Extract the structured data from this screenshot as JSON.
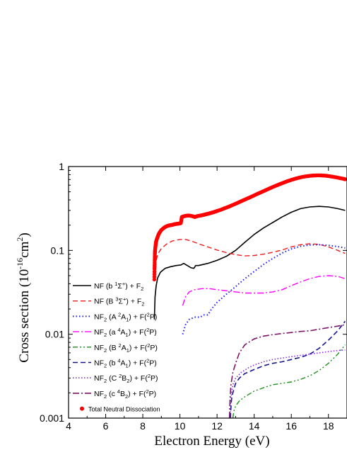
{
  "chart_data": {
    "type": "line",
    "xlabel": "Electron Energy (eV)",
    "ylabel": "Cross section (10^-16 cm^2)",
    "ylabel_parts": {
      "main": "Cross section  (10",
      "exp1": "-16",
      "mid": "cm",
      "exp2": "2",
      "end": ")"
    },
    "xlim": [
      4,
      19
    ],
    "ylim": [
      0.001,
      1
    ],
    "yscale": "log",
    "x_ticks": [
      4,
      6,
      8,
      10,
      12,
      14,
      16,
      18
    ],
    "x_tick_labels": [
      "4",
      "6",
      "8",
      "10",
      "12",
      "14",
      "16",
      "18"
    ],
    "y_ticks": [
      0.001,
      0.01,
      0.1,
      1
    ],
    "y_tick_labels": [
      "0.001",
      "0.01",
      "0.1",
      "1"
    ],
    "grid": false,
    "legend_position": "left",
    "series": [
      {
        "name": "NF (b 1Σ+) + F2",
        "legend_parts": [
          {
            "t": "NF (b "
          },
          {
            "t": "1",
            "sup": 1
          },
          {
            "t": "Σ"
          },
          {
            "t": "+",
            "sup": 1
          },
          {
            "t": ") + F"
          },
          {
            "t": "2",
            "sub": 1
          }
        ],
        "color": "#000000",
        "dash": "",
        "width": 1.6,
        "x": [
          8.62,
          8.66,
          8.72,
          8.8,
          8.95,
          9.2,
          9.5,
          9.8,
          10.05,
          10.2,
          10.4,
          10.6,
          10.75,
          10.85,
          11.0,
          11.5,
          12.0,
          12.5,
          13.0,
          13.5,
          14.0,
          14.5,
          15.0,
          15.5,
          16.0,
          16.5,
          17.0,
          17.5,
          18.0,
          18.5,
          18.9
        ],
        "y": [
          0.015,
          0.028,
          0.038,
          0.047,
          0.055,
          0.061,
          0.064,
          0.066,
          0.067,
          0.07,
          0.066,
          0.062,
          0.061,
          0.066,
          0.066,
          0.07,
          0.076,
          0.085,
          0.1,
          0.125,
          0.155,
          0.185,
          0.215,
          0.25,
          0.285,
          0.315,
          0.33,
          0.335,
          0.33,
          0.315,
          0.3
        ]
      },
      {
        "name": "NF (B 3Σ+) + F2",
        "legend_parts": [
          {
            "t": "NF (B "
          },
          {
            "t": "3",
            "sup": 1
          },
          {
            "t": "Σ"
          },
          {
            "t": "+",
            "sup": 1
          },
          {
            "t": ") + F"
          },
          {
            "t": "2",
            "sub": 1
          }
        ],
        "color": "#ee1c1c",
        "dash": "7,4",
        "width": 1.4,
        "x": [
          8.68,
          8.72,
          8.8,
          9.0,
          9.3,
          9.6,
          10.0,
          10.3,
          10.6,
          11.0,
          11.5,
          12.0,
          12.5,
          13.0,
          13.5,
          14.0,
          14.5,
          15.0,
          15.5,
          16.0,
          16.5,
          17.0,
          17.5,
          18.0,
          18.5,
          18.9
        ],
        "y": [
          0.05,
          0.075,
          0.09,
          0.105,
          0.12,
          0.13,
          0.135,
          0.135,
          0.13,
          0.12,
          0.11,
          0.101,
          0.094,
          0.089,
          0.086,
          0.087,
          0.09,
          0.095,
          0.101,
          0.11,
          0.117,
          0.12,
          0.118,
          0.11,
          0.1,
          0.092
        ]
      },
      {
        "name": "NF2 (A 2A1) + F(2P)",
        "legend_parts": [
          {
            "t": "NF"
          },
          {
            "t": "2",
            "sub": 1
          },
          {
            "t": " (A "
          },
          {
            "t": "2",
            "sup": 1
          },
          {
            "t": "A"
          },
          {
            "t": "1",
            "sub": 1
          },
          {
            "t": ") + F("
          },
          {
            "t": "2",
            "sup": 1
          },
          {
            "t": "P)"
          }
        ],
        "color": "#1c1cf0",
        "dash": "1.5,3",
        "width": 2,
        "x": [
          10.15,
          10.3,
          10.5,
          10.8,
          11.1,
          11.3,
          11.5,
          11.7,
          12.0,
          12.5,
          13.0,
          13.5,
          14.0,
          14.5,
          15.0,
          15.5,
          16.0,
          16.5,
          17.0,
          17.5,
          18.0,
          18.5,
          18.9
        ],
        "y": [
          0.01,
          0.013,
          0.015,
          0.016,
          0.016,
          0.017,
          0.017,
          0.02,
          0.024,
          0.03,
          0.037,
          0.046,
          0.056,
          0.068,
          0.08,
          0.093,
          0.104,
          0.112,
          0.116,
          0.117,
          0.115,
          0.111,
          0.107
        ]
      },
      {
        "name": "NF2 (a 4A1) + F(2P)",
        "legend_parts": [
          {
            "t": "NF"
          },
          {
            "t": "2",
            "sub": 1
          },
          {
            "t": " (a "
          },
          {
            "t": "4",
            "sup": 1
          },
          {
            "t": "A"
          },
          {
            "t": "1",
            "sub": 1
          },
          {
            "t": ") + F("
          },
          {
            "t": "2",
            "sup": 1
          },
          {
            "t": "P)"
          }
        ],
        "color": "#ff00ff",
        "dash": "9,3,2,3",
        "width": 1.4,
        "x": [
          10.15,
          10.3,
          10.5,
          10.8,
          11.2,
          11.6,
          12.0,
          12.5,
          13.0,
          13.5,
          14.0,
          14.5,
          15.0,
          15.5,
          16.0,
          16.5,
          17.0,
          17.5,
          18.0,
          18.5,
          18.9
        ],
        "y": [
          0.022,
          0.028,
          0.032,
          0.034,
          0.035,
          0.035,
          0.034,
          0.033,
          0.032,
          0.031,
          0.031,
          0.031,
          0.032,
          0.034,
          0.038,
          0.042,
          0.046,
          0.049,
          0.05,
          0.049,
          0.046
        ]
      },
      {
        "name": "NF2 (B 2A1) + F(2P)",
        "legend_parts": [
          {
            "t": "NF"
          },
          {
            "t": "2",
            "sub": 1
          },
          {
            "t": " (B "
          },
          {
            "t": "2",
            "sup": 1
          },
          {
            "t": "A"
          },
          {
            "t": "1",
            "sub": 1
          },
          {
            "t": ") + F("
          },
          {
            "t": "2",
            "sup": 1
          },
          {
            "t": "P)"
          }
        ],
        "color": "#1f8f1f",
        "dash": "7,3,2,3,2,3",
        "width": 1.4,
        "x": [
          12.85,
          12.9,
          13.0,
          13.2,
          13.5,
          14.0,
          14.5,
          15.0,
          15.5,
          16.0,
          16.5,
          17.0,
          17.5,
          18.0,
          18.5,
          18.9
        ],
        "y": [
          0.001,
          0.0012,
          0.0014,
          0.0016,
          0.0018,
          0.0021,
          0.0023,
          0.0025,
          0.0026,
          0.0027,
          0.0029,
          0.0032,
          0.0037,
          0.0045,
          0.0058,
          0.0075
        ]
      },
      {
        "name": "NF2 (b 4A1) + F(2P)",
        "legend_parts": [
          {
            "t": "NF"
          },
          {
            "t": "2",
            "sub": 1
          },
          {
            "t": " (b "
          },
          {
            "t": "4",
            "sup": 1
          },
          {
            "t": "A"
          },
          {
            "t": "1",
            "sub": 1
          },
          {
            "t": ") + F("
          },
          {
            "t": "2",
            "sup": 1
          },
          {
            "t": "P)"
          }
        ],
        "color": "#14148a",
        "dash": "7,4",
        "width": 1.6,
        "x": [
          12.72,
          12.76,
          12.8,
          12.9,
          13.0,
          13.2,
          13.5,
          14.0,
          14.5,
          15.0,
          15.5,
          16.0,
          16.5,
          17.0,
          17.5,
          18.0,
          18.5,
          18.9
        ],
        "y": [
          0.001,
          0.0015,
          0.0018,
          0.0022,
          0.0026,
          0.003,
          0.0034,
          0.0038,
          0.0042,
          0.0045,
          0.0047,
          0.005,
          0.0053,
          0.0058,
          0.0068,
          0.0085,
          0.011,
          0.0143
        ]
      },
      {
        "name": "NF2 (C 2B2) + F(2P)",
        "legend_parts": [
          {
            "t": "NF"
          },
          {
            "t": "2",
            "sub": 1
          },
          {
            "t": " (C "
          },
          {
            "t": "2",
            "sup": 1
          },
          {
            "t": "B"
          },
          {
            "t": "2",
            "sub": 1
          },
          {
            "t": ") + F("
          },
          {
            "t": "2",
            "sup": 1
          },
          {
            "t": "P)"
          }
        ],
        "color": "#8a2be2",
        "dash": "1.5,2.5",
        "width": 1.6,
        "x": [
          12.7,
          12.73,
          12.78,
          12.85,
          13.0,
          13.3,
          13.7,
          14.0,
          14.5,
          15.0,
          15.5,
          16.0,
          16.5,
          17.0,
          17.5,
          18.0,
          18.5,
          18.9
        ],
        "y": [
          0.001,
          0.0015,
          0.002,
          0.0025,
          0.003,
          0.0035,
          0.004,
          0.0043,
          0.0047,
          0.005,
          0.0052,
          0.0054,
          0.0056,
          0.0058,
          0.006,
          0.0062,
          0.0064,
          0.0065
        ]
      },
      {
        "name": "NF2 (c 4B2) + F(2P)",
        "legend_parts": [
          {
            "t": "NF"
          },
          {
            "t": "2",
            "sub": 1
          },
          {
            "t": " (c "
          },
          {
            "t": "4",
            "sup": 1
          },
          {
            "t": "B"
          },
          {
            "t": "2",
            "sub": 1
          },
          {
            "t": ") + F("
          },
          {
            "t": "2",
            "sup": 1
          },
          {
            "t": "P)"
          }
        ],
        "color": "#7b1466",
        "dash": "9,3,2,3",
        "width": 1.6,
        "x": [
          12.67,
          12.7,
          12.75,
          12.85,
          13.0,
          13.2,
          13.5,
          14.0,
          14.5,
          15.0,
          15.5,
          16.0,
          16.5,
          17.0,
          17.5,
          18.0,
          18.5,
          18.9
        ],
        "y": [
          0.001,
          0.0017,
          0.0025,
          0.0035,
          0.0045,
          0.006,
          0.0075,
          0.0088,
          0.0095,
          0.0099,
          0.0102,
          0.0105,
          0.0108,
          0.011,
          0.0115,
          0.012,
          0.0125,
          0.013
        ]
      },
      {
        "name": "Total Neutral Dissociation",
        "legend_parts": [
          {
            "t": "Total Neutral Dissociation"
          }
        ],
        "color": "#ff0000",
        "marker": "circle",
        "x": [
          8.62,
          8.63,
          8.64,
          8.65,
          8.66,
          8.68,
          8.7,
          8.72,
          8.75,
          8.8,
          8.85,
          8.9,
          9.0,
          9.1,
          9.2,
          9.3,
          9.4,
          9.5,
          9.6,
          9.7,
          9.8,
          9.9,
          10.0,
          10.05,
          10.1,
          10.15,
          10.2,
          10.3,
          10.4,
          10.5,
          10.6,
          10.7,
          10.8,
          10.9,
          11.0,
          11.1,
          11.2,
          11.3,
          11.4,
          11.5,
          11.6,
          11.7,
          11.8,
          11.9,
          12.0,
          12.2,
          12.4,
          12.6,
          12.8,
          13.0,
          13.2,
          13.4,
          13.6,
          13.8,
          14.0,
          14.2,
          14.4,
          14.6,
          14.8,
          15.0,
          15.2,
          15.4,
          15.6,
          15.8,
          16.0,
          16.2,
          16.4,
          16.6,
          16.8,
          17.0,
          17.2,
          17.4,
          17.6,
          17.8,
          18.0,
          18.2,
          18.4,
          18.6,
          18.8,
          18.9
        ],
        "y": [
          0.045,
          0.06,
          0.075,
          0.09,
          0.1,
          0.11,
          0.12,
          0.128,
          0.135,
          0.145,
          0.155,
          0.163,
          0.175,
          0.183,
          0.19,
          0.195,
          0.198,
          0.2,
          0.202,
          0.205,
          0.207,
          0.208,
          0.21,
          0.212,
          0.25,
          0.252,
          0.255,
          0.258,
          0.26,
          0.26,
          0.258,
          0.255,
          0.25,
          0.255,
          0.258,
          0.26,
          0.263,
          0.266,
          0.27,
          0.273,
          0.277,
          0.281,
          0.285,
          0.29,
          0.295,
          0.305,
          0.318,
          0.33,
          0.345,
          0.36,
          0.377,
          0.395,
          0.413,
          0.432,
          0.453,
          0.475,
          0.497,
          0.52,
          0.545,
          0.57,
          0.595,
          0.62,
          0.645,
          0.67,
          0.693,
          0.715,
          0.735,
          0.752,
          0.765,
          0.775,
          0.782,
          0.785,
          0.784,
          0.779,
          0.77,
          0.758,
          0.745,
          0.73,
          0.715,
          0.705
        ]
      }
    ]
  }
}
